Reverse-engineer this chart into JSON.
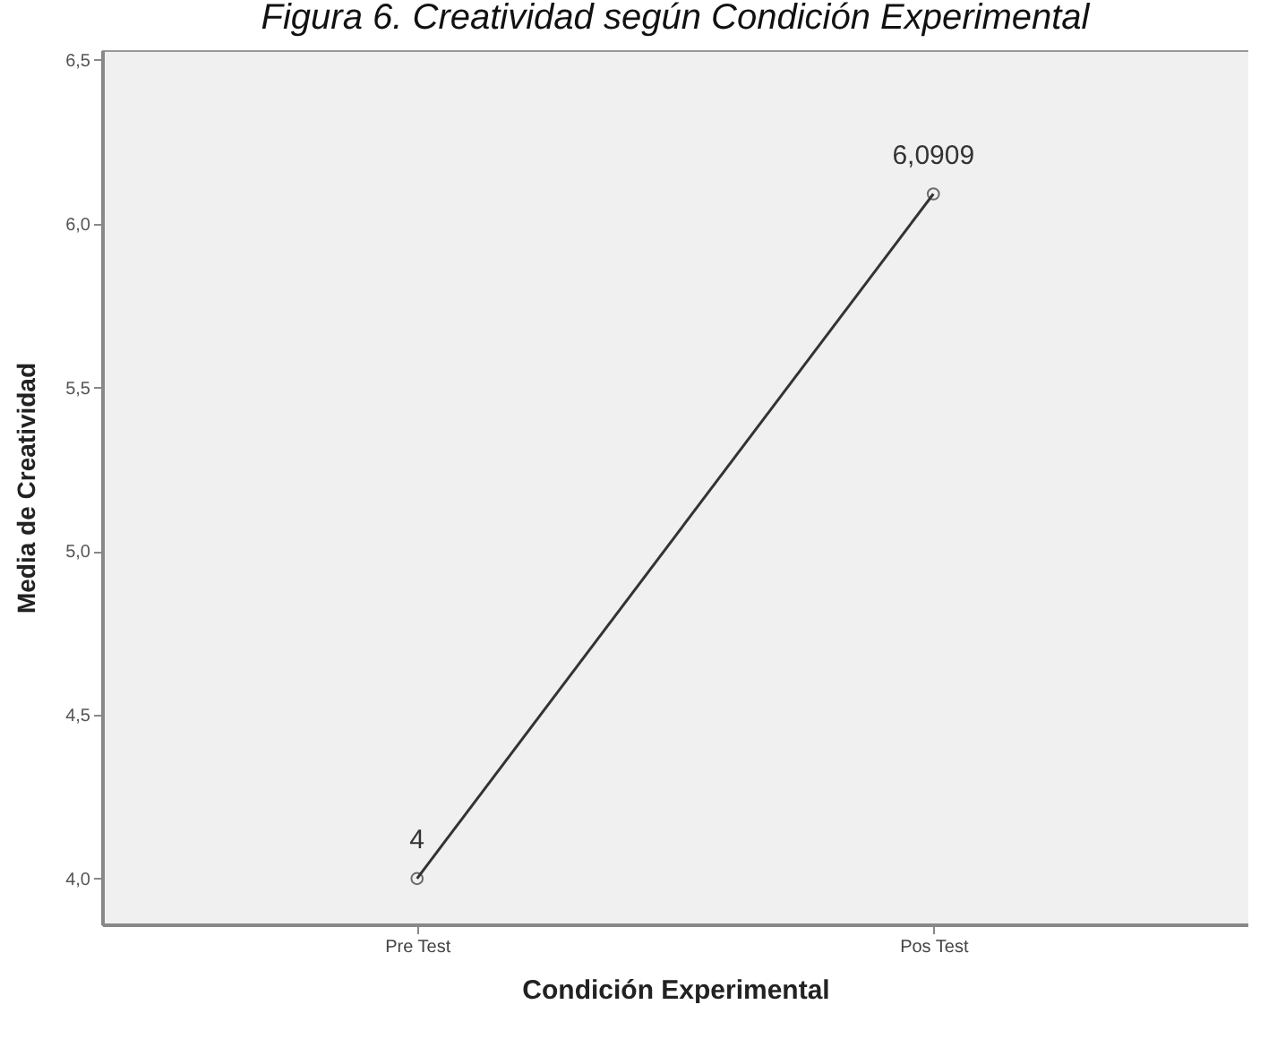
{
  "chart_data": {
    "type": "line",
    "title": "Figura 6. Creatividad según Condición Experimental",
    "xlabel": "Condición Experimental",
    "ylabel": "Media de Creatividad",
    "categories": [
      "Pre Test",
      "Pos Test"
    ],
    "values": [
      4,
      6.0909
    ],
    "value_labels": [
      "4",
      "6,0909"
    ],
    "color": "#333333",
    "ylim": [
      3.86,
      6.53
    ],
    "yticks": [
      {
        "value": 4,
        "label": "4,0"
      },
      {
        "value": 4.5,
        "label": "4,5"
      },
      {
        "value": 5,
        "label": "5,0"
      },
      {
        "value": 5.5,
        "label": "5,5"
      },
      {
        "value": 6,
        "label": "6,0"
      },
      {
        "value": 6.5,
        "label": "6,5"
      }
    ],
    "grid": false,
    "marker": "circle",
    "line_style": "solid"
  }
}
